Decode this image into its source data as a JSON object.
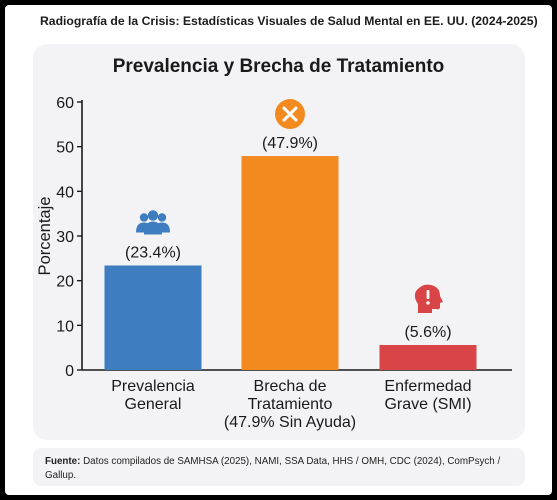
{
  "header": {
    "title": "Radiografía de la Crisis: Estadísticas Visuales de Salud Mental en EE. UU. (2024-2025)"
  },
  "chart_data": {
    "type": "bar",
    "title": "Prevalencia y Brecha de Tratamiento",
    "ylabel": "Porcentaje",
    "xlabel": "",
    "ylim": [
      0,
      60
    ],
    "yticks": [
      0,
      10,
      20,
      30,
      40,
      50,
      60
    ],
    "grid": false,
    "categories": [
      [
        "Prevalencia",
        "General"
      ],
      [
        "Brecha de",
        "Tratamiento",
        "(47.9% Sin Ayuda)"
      ],
      [
        "Enfermedad",
        "Grave (SMI)"
      ]
    ],
    "values": [
      23.4,
      47.9,
      5.6
    ],
    "data_labels": [
      "(23.4%)",
      "(47.9%)",
      "(5.6%)"
    ],
    "colors": [
      "#3d7dc0",
      "#f28a20",
      "#d94547"
    ],
    "icons": [
      "people-group-icon",
      "x-circle-icon",
      "head-alert-icon"
    ]
  },
  "footer": {
    "label": "Fuente:",
    "text": "Datos compilados de SAMHSA (2025), NAMI, SSA Data, HHS / OMH, CDC (2024), ComPsych / Gallup."
  }
}
